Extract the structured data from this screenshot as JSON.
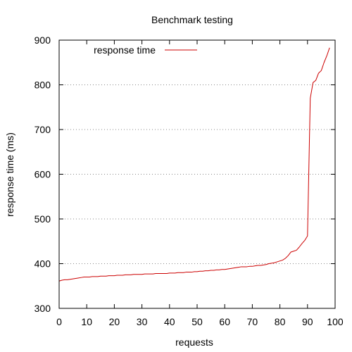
{
  "chart_data": {
    "type": "line",
    "title": "Benchmark testing",
    "xlabel": "requests",
    "ylabel": "response time (ms)",
    "xlim": [
      0,
      100
    ],
    "ylim": [
      300,
      900
    ],
    "xticks": [
      0,
      10,
      20,
      30,
      40,
      50,
      60,
      70,
      80,
      90,
      100
    ],
    "yticks": [
      300,
      400,
      500,
      600,
      700,
      800,
      900
    ],
    "grid": "horizontal-dotted",
    "legend_position": "top-left",
    "series": [
      {
        "name": "response time",
        "color": "#cc0000",
        "x": [
          0,
          1,
          2,
          3,
          4,
          5,
          6,
          7,
          8,
          9,
          10,
          11,
          12,
          13,
          14,
          15,
          16,
          17,
          18,
          19,
          20,
          21,
          22,
          23,
          24,
          25,
          26,
          27,
          28,
          29,
          30,
          31,
          32,
          33,
          34,
          35,
          36,
          37,
          38,
          39,
          40,
          41,
          42,
          43,
          44,
          45,
          46,
          47,
          48,
          49,
          50,
          51,
          52,
          53,
          54,
          55,
          56,
          57,
          58,
          59,
          60,
          61,
          62,
          63,
          64,
          65,
          66,
          67,
          68,
          69,
          70,
          71,
          72,
          73,
          74,
          75,
          76,
          77,
          78,
          79,
          80,
          81,
          82,
          83,
          84,
          85,
          86,
          87,
          88,
          89,
          90,
          91,
          92,
          93,
          94,
          95,
          96,
          97,
          98
        ],
        "y": [
          361,
          363,
          364,
          364,
          365,
          366,
          367,
          368,
          369,
          370,
          370,
          370,
          371,
          371,
          371,
          372,
          372,
          372,
          373,
          373,
          373,
          374,
          374,
          374,
          375,
          375,
          375,
          376,
          376,
          376,
          376,
          377,
          377,
          377,
          377,
          378,
          378,
          378,
          378,
          378,
          379,
          379,
          379,
          380,
          380,
          380,
          381,
          381,
          381,
          382,
          382,
          383,
          383,
          384,
          384,
          385,
          385,
          386,
          386,
          387,
          387,
          388,
          389,
          390,
          391,
          392,
          393,
          393,
          393,
          394,
          394,
          395,
          396,
          396,
          397,
          398,
          400,
          401,
          402,
          404,
          406,
          408,
          412,
          418,
          426,
          428,
          430,
          437,
          445,
          452,
          462,
          770,
          805,
          810,
          826,
          832,
          850,
          865,
          883
        ]
      }
    ]
  }
}
